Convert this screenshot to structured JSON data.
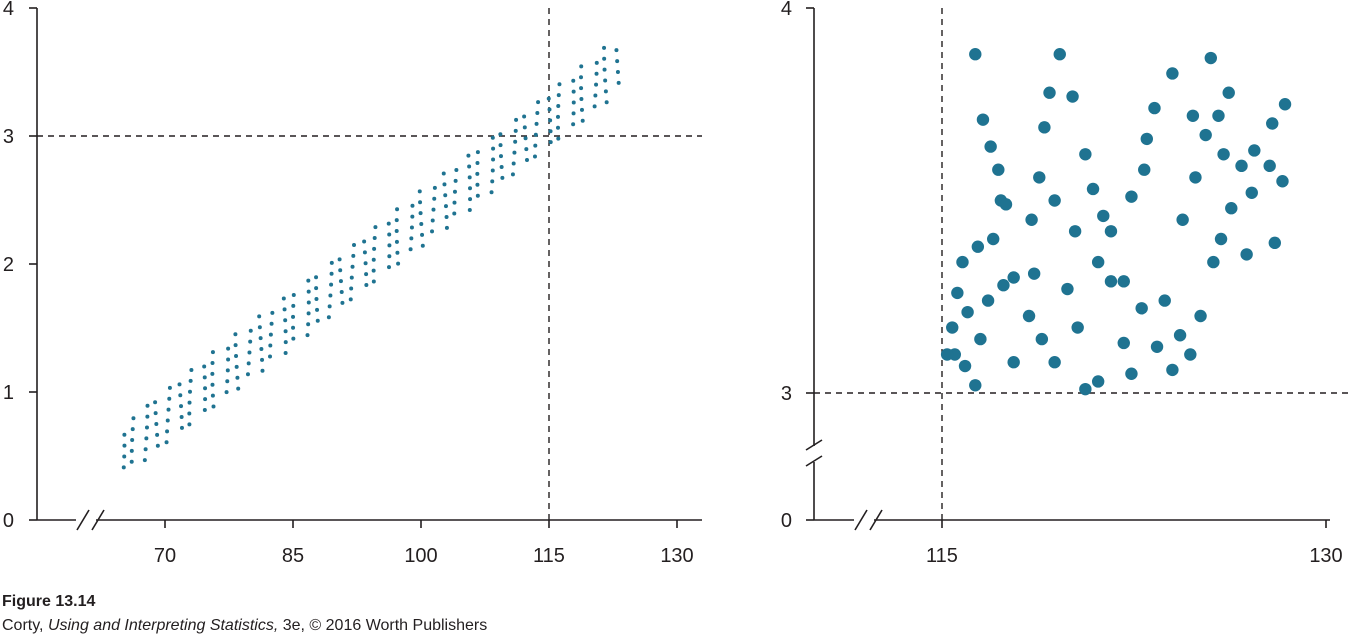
{
  "caption": {
    "figure_label": "Figure 13.14",
    "credit_author": "Corty,",
    "credit_book": "Using and Interpreting Statistics,",
    "credit_rest": "3e, © 2016 Worth Publishers"
  },
  "colors": {
    "dot": "#1f7391",
    "axis": "#231f20"
  },
  "chart_data": [
    {
      "type": "scatter",
      "title": "",
      "xlabel": "",
      "ylabel": "",
      "xlim": [
        61,
        131
      ],
      "ylim": [
        0,
        4
      ],
      "x_axis_break": true,
      "x_ticks": [
        70,
        85,
        100,
        115,
        130
      ],
      "y_ticks": [
        0,
        1,
        2,
        3,
        4
      ],
      "reference_lines": {
        "x": 115,
        "y": 3
      },
      "grid": false,
      "description_of_points": "dense elongated band of ~600 small points from about (66, 0.5) to (123, 3.6)",
      "band": {
        "start": [
          66,
          0.6
        ],
        "end": [
          122.5,
          3.52
        ],
        "half_width_y": 0.22,
        "x_step": 1.35,
        "y_step": 0.085
      }
    },
    {
      "type": "scatter",
      "title": "",
      "xlabel": "",
      "ylabel": "",
      "xlim": [
        112.5,
        130
      ],
      "ylim_lower": [
        0,
        3
      ],
      "ylim": [
        3,
        4
      ],
      "y_axis_break": true,
      "x_axis_break": true,
      "x_ticks": [
        115,
        130
      ],
      "y_ticks": [
        0,
        3,
        4
      ],
      "reference_lines": {
        "x": 115,
        "y": 3
      },
      "grid": false,
      "points": [
        [
          116.3,
          3.88
        ],
        [
          116.6,
          3.71
        ],
        [
          116.9,
          3.64
        ],
        [
          117.2,
          3.58
        ],
        [
          117.0,
          3.4
        ],
        [
          117.3,
          3.5
        ],
        [
          117.5,
          3.49
        ],
        [
          117.8,
          3.3
        ],
        [
          118.5,
          3.45
        ],
        [
          118.8,
          3.56
        ],
        [
          119.2,
          3.78
        ],
        [
          119.0,
          3.69
        ],
        [
          119.6,
          3.88
        ],
        [
          120.1,
          3.77
        ],
        [
          120.6,
          3.62
        ],
        [
          120.9,
          3.53
        ],
        [
          121.3,
          3.46
        ],
        [
          121.6,
          3.42
        ],
        [
          122.1,
          3.29
        ],
        [
          122.4,
          3.51
        ],
        [
          122.9,
          3.58
        ],
        [
          123.0,
          3.66
        ],
        [
          123.3,
          3.74
        ],
        [
          124.0,
          3.83
        ],
        [
          124.4,
          3.45
        ],
        [
          124.9,
          3.56
        ],
        [
          125.3,
          3.67
        ],
        [
          125.5,
          3.87
        ],
        [
          125.8,
          3.72
        ],
        [
          126.2,
          3.78
        ],
        [
          115.9,
          3.07
        ],
        [
          116.3,
          3.02
        ],
        [
          116.5,
          3.14
        ],
        [
          116.8,
          3.24
        ],
        [
          115.5,
          3.1
        ],
        [
          116.0,
          3.21
        ],
        [
          115.6,
          3.26
        ],
        [
          116.4,
          3.38
        ],
        [
          115.8,
          3.34
        ],
        [
          117.8,
          3.08
        ],
        [
          118.4,
          3.2
        ],
        [
          118.9,
          3.14
        ],
        [
          119.4,
          3.08
        ],
        [
          119.9,
          3.27
        ],
        [
          120.3,
          3.17
        ],
        [
          120.6,
          3.01
        ],
        [
          121.1,
          3.03
        ],
        [
          121.6,
          3.29
        ],
        [
          122.1,
          3.13
        ],
        [
          122.4,
          3.05
        ],
        [
          122.8,
          3.22
        ],
        [
          123.4,
          3.12
        ],
        [
          124.0,
          3.06
        ],
        [
          124.3,
          3.15
        ],
        [
          124.7,
          3.1
        ],
        [
          125.1,
          3.2
        ],
        [
          125.6,
          3.34
        ],
        [
          125.9,
          3.4
        ],
        [
          126.3,
          3.48
        ],
        [
          126.7,
          3.59
        ],
        [
          127.2,
          3.63
        ],
        [
          127.8,
          3.59
        ],
        [
          127.9,
          3.7
        ],
        [
          128.3,
          3.55
        ],
        [
          128.4,
          3.75
        ],
        [
          126.9,
          3.36
        ],
        [
          127.1,
          3.52
        ],
        [
          126.0,
          3.62
        ],
        [
          124.8,
          3.72
        ],
        [
          123.7,
          3.24
        ],
        [
          121.1,
          3.34
        ],
        [
          119.4,
          3.5
        ],
        [
          117.4,
          3.28
        ],
        [
          118.6,
          3.31
        ],
        [
          120.2,
          3.42
        ],
        [
          128.0,
          3.39
        ],
        [
          115.2,
          3.1
        ],
        [
          115.4,
          3.17
        ]
      ]
    }
  ]
}
